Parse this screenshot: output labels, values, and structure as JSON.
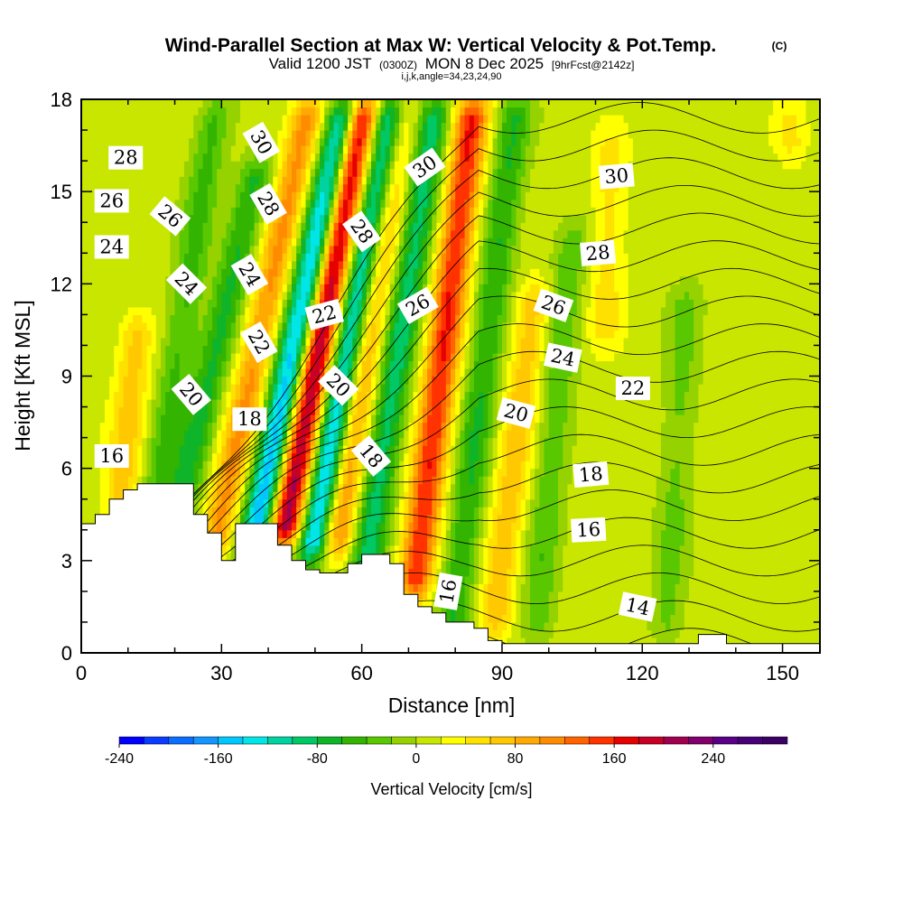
{
  "chart_data": {
    "type": "heatmap",
    "title": "Wind-Parallel Section at Max W: Vertical Velocity & Pot.Temp.",
    "title_mark": "(C)",
    "subtitle_prefix": "Valid 1200 JST",
    "subtitle_utc": "(0300Z)",
    "subtitle_date": "MON 8 Dec 2025",
    "subtitle_fcst": "[9hrFcst@2142z]",
    "subtitle_indices": "i,j,k,angle=34,23,24,90",
    "xlabel": "Distance [nm]",
    "ylabel": "Height [Kft MSL]",
    "xlim": [
      0,
      158
    ],
    "ylim": [
      0,
      18
    ],
    "x_ticks": [
      0,
      30,
      60,
      90,
      120,
      150
    ],
    "y_ticks": [
      0,
      3,
      6,
      9,
      12,
      15,
      18
    ],
    "colorbar": {
      "label": "Vertical Velocity [cm/s]",
      "min": -240,
      "max": 300,
      "step": 20,
      "tick_values": [
        -240,
        -160,
        -80,
        0,
        80,
        160,
        240
      ],
      "tick_labels": [
        "-240",
        "-160",
        "-80",
        "0",
        "80",
        "160",
        "240"
      ],
      "colors": [
        "#0000ff",
        "#0a3cff",
        "#0a6eff",
        "#1496ff",
        "#00c8ff",
        "#00e6e6",
        "#00d2a0",
        "#00c864",
        "#0fb428",
        "#32b400",
        "#5ac800",
        "#96d200",
        "#c8e600",
        "#ffff00",
        "#ffe100",
        "#ffc800",
        "#ffaa00",
        "#ff8c00",
        "#ff6400",
        "#ff3200",
        "#e60000",
        "#c80028",
        "#a00050",
        "#82006e",
        "#5a0087",
        "#460078",
        "#3c0064"
      ]
    },
    "updraft_bands": [
      {
        "x": 8,
        "base": 4.0,
        "top": 11.0,
        "tilt": 0.6,
        "w": 60
      },
      {
        "x": 28,
        "base": 3.0,
        "top": 18.0,
        "tilt": 1.4,
        "w": 95
      },
      {
        "x": 43,
        "base": 3.5,
        "top": 18.0,
        "tilt": 1.2,
        "w": 210
      },
      {
        "x": 54,
        "base": 3.2,
        "top": 18.0,
        "tilt": 1.0,
        "w": 110
      },
      {
        "x": 71,
        "base": 1.8,
        "top": 18.0,
        "tilt": 0.8,
        "w": 150
      },
      {
        "x": 88,
        "base": 0.5,
        "top": 12.0,
        "tilt": 0.8,
        "w": 65
      },
      {
        "x": 112,
        "base": 10.0,
        "top": 17.0,
        "tilt": 0.2,
        "w": 40
      },
      {
        "x": 152,
        "base": 16.0,
        "top": 18.0,
        "tilt": 0.0,
        "w": 40
      }
    ],
    "downdraft_bands": [
      {
        "x": 12,
        "base": 1.0,
        "top": 18.0,
        "tilt": 1.0,
        "w": -55
      },
      {
        "x": 20,
        "base": 4.0,
        "top": 16.0,
        "tilt": 1.5,
        "w": -75
      },
      {
        "x": 36,
        "base": 3.0,
        "top": 18.0,
        "tilt": 1.4,
        "w": -175
      },
      {
        "x": 49,
        "base": 3.0,
        "top": 18.0,
        "tilt": 1.2,
        "w": -175
      },
      {
        "x": 60,
        "base": 2.0,
        "top": 18.0,
        "tilt": 1.0,
        "w": -100
      },
      {
        "x": 79,
        "base": 0.3,
        "top": 18.0,
        "tilt": 0.8,
        "w": -70
      },
      {
        "x": 97,
        "base": 0.3,
        "top": 14.0,
        "tilt": 0.6,
        "w": -45
      },
      {
        "x": 125,
        "base": 0.3,
        "top": 12.0,
        "tilt": 0.4,
        "w": -35
      }
    ],
    "terrain_profile": {
      "x": [
        0,
        3,
        6,
        9,
        12,
        18,
        21,
        24,
        27,
        30,
        33,
        36,
        39,
        42,
        45,
        48,
        51,
        54,
        57,
        60,
        63,
        66,
        69,
        72,
        75,
        78,
        81,
        84,
        87,
        90,
        93,
        96,
        99,
        102,
        105,
        108,
        111,
        114,
        117,
        120,
        123,
        126,
        129,
        132,
        135,
        138,
        141,
        144,
        147,
        150,
        153,
        156,
        158
      ],
      "height": [
        4.2,
        4.5,
        5.0,
        5.3,
        5.5,
        5.5,
        5.5,
        4.5,
        3.9,
        3.0,
        4.2,
        4.2,
        4.2,
        3.5,
        3.0,
        2.7,
        2.6,
        2.6,
        2.9,
        3.2,
        3.2,
        2.9,
        1.9,
        1.5,
        1.3,
        1.0,
        1.0,
        0.8,
        0.4,
        0.3,
        0.3,
        0.3,
        0.3,
        0.3,
        0.3,
        0.3,
        0.3,
        0.3,
        0.3,
        0.3,
        0.3,
        0.3,
        0.3,
        0.6,
        0.6,
        0.3,
        0.3,
        0.3,
        0.3,
        0.3,
        0.3,
        0.3,
        0.3
      ]
    },
    "theta_contour_labels": [
      {
        "text": "28",
        "x": 9.5,
        "y": 16.1,
        "angle": 0
      },
      {
        "text": "26",
        "x": 6.5,
        "y": 14.7,
        "angle": 0
      },
      {
        "text": "24",
        "x": 6.5,
        "y": 13.2,
        "angle": 0
      },
      {
        "text": "16",
        "x": 6.5,
        "y": 6.4,
        "angle": 0
      },
      {
        "text": "26",
        "x": 19.0,
        "y": 14.2,
        "angle": 40
      },
      {
        "text": "24",
        "x": 22.5,
        "y": 12.0,
        "angle": 45
      },
      {
        "text": "20",
        "x": 23.5,
        "y": 8.4,
        "angle": 50
      },
      {
        "text": "30",
        "x": 38.5,
        "y": 16.6,
        "angle": 60
      },
      {
        "text": "28",
        "x": 40.0,
        "y": 14.6,
        "angle": 60
      },
      {
        "text": "24",
        "x": 36.0,
        "y": 12.3,
        "angle": 60
      },
      {
        "text": "22",
        "x": 38.0,
        "y": 10.1,
        "angle": 60
      },
      {
        "text": "18",
        "x": 36.0,
        "y": 7.6,
        "angle": 0
      },
      {
        "text": "22",
        "x": 52.0,
        "y": 11.0,
        "angle": -15
      },
      {
        "text": "20",
        "x": 55.0,
        "y": 8.7,
        "angle": 45
      },
      {
        "text": "28",
        "x": 60.0,
        "y": 13.7,
        "angle": 55
      },
      {
        "text": "18",
        "x": 62.0,
        "y": 6.4,
        "angle": 50
      },
      {
        "text": "30",
        "x": 73.5,
        "y": 15.8,
        "angle": -35
      },
      {
        "text": "26",
        "x": 72.0,
        "y": 11.3,
        "angle": -30
      },
      {
        "text": "16",
        "x": 78.5,
        "y": 2.0,
        "angle": -80
      },
      {
        "text": "20",
        "x": 93.0,
        "y": 7.8,
        "angle": 15
      },
      {
        "text": "26",
        "x": 101.0,
        "y": 11.3,
        "angle": 20
      },
      {
        "text": "24",
        "x": 103.0,
        "y": 9.6,
        "angle": 12
      },
      {
        "text": "22",
        "x": 118.0,
        "y": 8.6,
        "angle": 0
      },
      {
        "text": "18",
        "x": 109.0,
        "y": 5.8,
        "angle": -5
      },
      {
        "text": "16",
        "x": 108.5,
        "y": 4.0,
        "angle": -3
      },
      {
        "text": "14",
        "x": 119.0,
        "y": 1.5,
        "angle": 12
      },
      {
        "text": "28",
        "x": 110.5,
        "y": 13.0,
        "angle": -5
      },
      {
        "text": "30",
        "x": 114.5,
        "y": 15.5,
        "angle": -5
      }
    ]
  }
}
